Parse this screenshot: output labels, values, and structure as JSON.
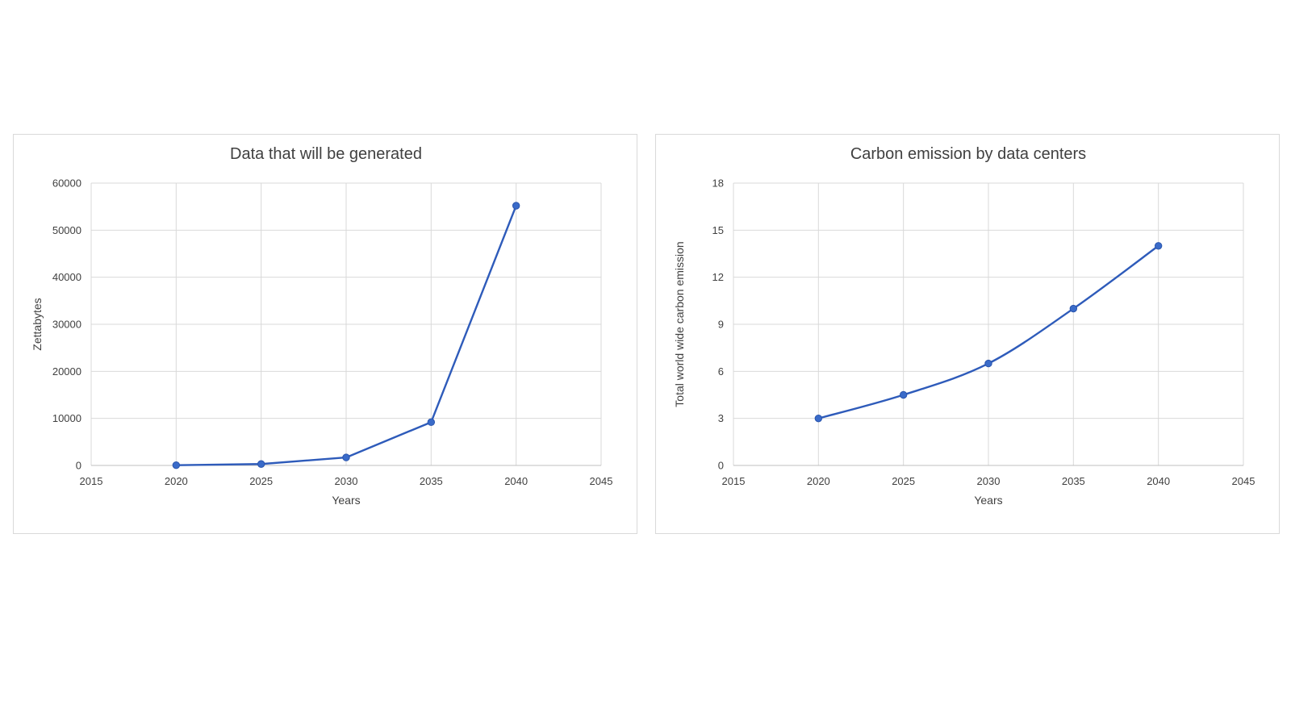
{
  "colors": {
    "series": "#2E5BBA",
    "marker": "#3A6BC9"
  },
  "chart_data": [
    {
      "type": "line",
      "title": "Data that will be generated",
      "xlabel": "Years",
      "ylabel": "Zettabytes",
      "xlim": [
        2015,
        2045
      ],
      "ylim": [
        0,
        60000
      ],
      "x_ticks": [
        2015,
        2020,
        2025,
        2030,
        2035,
        2040,
        2045
      ],
      "y_ticks": [
        0,
        10000,
        20000,
        30000,
        40000,
        50000,
        60000
      ],
      "grid": true,
      "smooth": false,
      "series": [
        {
          "x": [
            2020,
            2025,
            2030,
            2035,
            2040
          ],
          "y": [
            59,
            300,
            1700,
            9200,
            55200
          ]
        }
      ]
    },
    {
      "type": "line",
      "title": "Carbon emission by data centers",
      "xlabel": "Years",
      "ylabel": "Total world wide carbon emission",
      "xlim": [
        2015,
        2045
      ],
      "ylim": [
        0,
        18
      ],
      "x_ticks": [
        2015,
        2020,
        2025,
        2030,
        2035,
        2040,
        2045
      ],
      "y_ticks": [
        0,
        3,
        6,
        9,
        12,
        15,
        18
      ],
      "grid": true,
      "smooth": true,
      "series": [
        {
          "x": [
            2020,
            2025,
            2030,
            2035,
            2040
          ],
          "y": [
            3,
            4.5,
            6.5,
            10,
            14
          ]
        }
      ]
    }
  ]
}
